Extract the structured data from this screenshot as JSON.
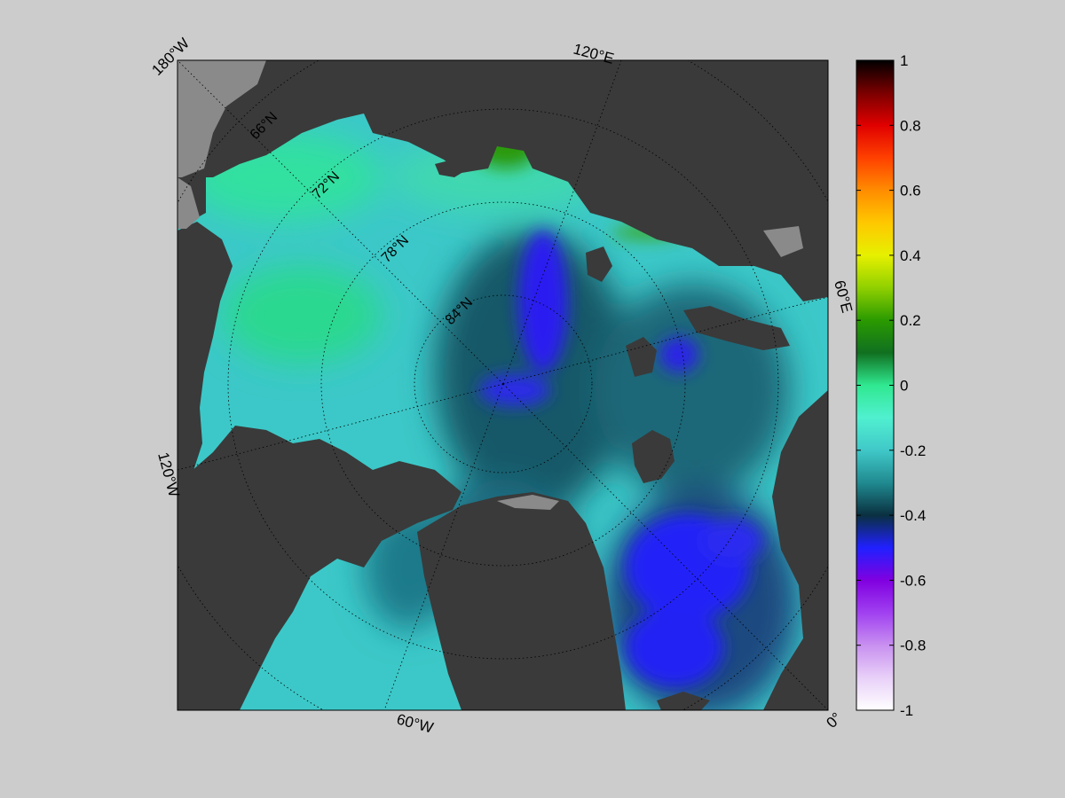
{
  "map": {
    "projection": "north polar stereographic",
    "longitude_labels": [
      {
        "text": "180°W",
        "value": "180W"
      },
      {
        "text": "120°E",
        "value": "120E"
      },
      {
        "text": "60°E",
        "value": "60E"
      },
      {
        "text": "0°",
        "value": "0"
      },
      {
        "text": "60°W",
        "value": "60W"
      },
      {
        "text": "120°W",
        "value": "120W"
      }
    ],
    "latitude_labels": [
      {
        "text": "66°N",
        "value": 66
      },
      {
        "text": "72°N",
        "value": 72
      },
      {
        "text": "78°N",
        "value": 78
      },
      {
        "text": "84°N",
        "value": 84
      }
    ],
    "gridlines": "dotted",
    "land_color": "#3a3a3a",
    "ice_shelf_color": "#8a8a8a",
    "background_color": "#cccccc"
  },
  "colorbar": {
    "range": [
      -1,
      1
    ],
    "ticks": [
      {
        "value": 1,
        "label": "1"
      },
      {
        "value": 0.8,
        "label": "0.8"
      },
      {
        "value": 0.6,
        "label": "0.6"
      },
      {
        "value": 0.4,
        "label": "0.4"
      },
      {
        "value": 0.2,
        "label": "0.2"
      },
      {
        "value": 0,
        "label": "0"
      },
      {
        "value": -0.2,
        "label": "-0.2"
      },
      {
        "value": -0.4,
        "label": "-0.4"
      },
      {
        "value": -0.6,
        "label": "-0.6"
      },
      {
        "value": -0.8,
        "label": "-0.8"
      },
      {
        "value": -1,
        "label": "-1"
      }
    ],
    "colormap": [
      {
        "value": 1.0,
        "color": "#000000"
      },
      {
        "value": 0.9,
        "color": "#7a0000"
      },
      {
        "value": 0.8,
        "color": "#e00000"
      },
      {
        "value": 0.7,
        "color": "#ff4000"
      },
      {
        "value": 0.6,
        "color": "#ff8c00"
      },
      {
        "value": 0.5,
        "color": "#ffc800"
      },
      {
        "value": 0.4,
        "color": "#e6f000"
      },
      {
        "value": 0.3,
        "color": "#90d000"
      },
      {
        "value": 0.2,
        "color": "#2a9a00"
      },
      {
        "value": 0.1,
        "color": "#107020"
      },
      {
        "value": 0.0,
        "color": "#30e890"
      },
      {
        "value": -0.1,
        "color": "#50f0d0"
      },
      {
        "value": -0.2,
        "color": "#40c8c8"
      },
      {
        "value": -0.3,
        "color": "#208a90"
      },
      {
        "value": -0.4,
        "color": "#0a3040"
      },
      {
        "value": -0.5,
        "color": "#2020ff"
      },
      {
        "value": -0.6,
        "color": "#8000e0"
      },
      {
        "value": -0.7,
        "color": "#a040f0"
      },
      {
        "value": -0.8,
        "color": "#c890f0"
      },
      {
        "value": -0.9,
        "color": "#e8d0f8"
      },
      {
        "value": -1.0,
        "color": "#ffffff"
      }
    ]
  }
}
